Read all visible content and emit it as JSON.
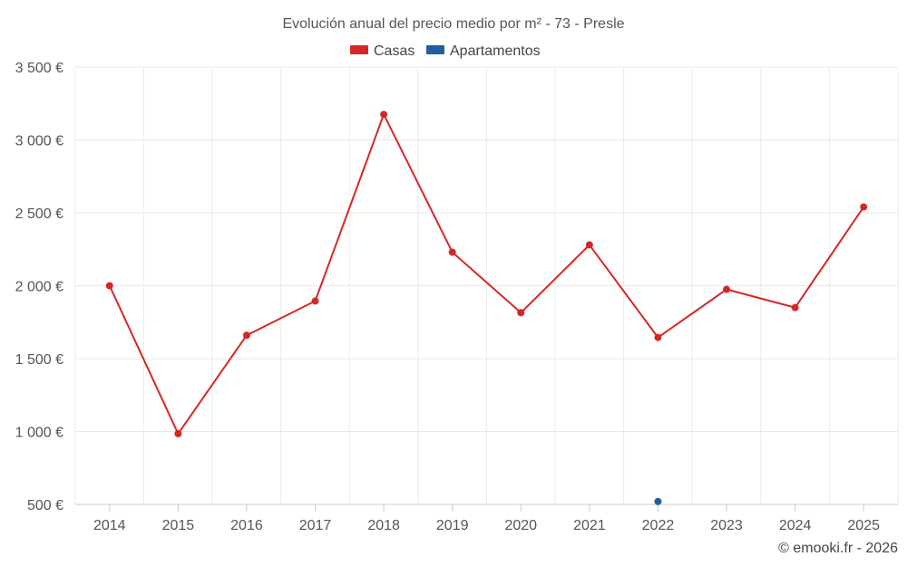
{
  "chart_data": {
    "type": "line",
    "title": "Evolución anual del precio medio por m² - 73 - Presle",
    "xlabel": "",
    "ylabel": "",
    "categories": [
      "2014",
      "2015",
      "2016",
      "2017",
      "2018",
      "2019",
      "2020",
      "2021",
      "2022",
      "2023",
      "2024",
      "2025"
    ],
    "y_ticks": [
      "500 €",
      "1 000 €",
      "1 500 €",
      "2 000 €",
      "2 500 €",
      "3 000 €",
      "3 500 €"
    ],
    "ylim": [
      500,
      3500
    ],
    "series": [
      {
        "name": "Casas",
        "color": "#d62728",
        "values": [
          2000,
          985,
          1660,
          1895,
          3175,
          2230,
          1815,
          2280,
          1645,
          1975,
          1850,
          2540
        ]
      },
      {
        "name": "Apartamentos",
        "color": "#1f5f9e",
        "values": [
          null,
          null,
          null,
          null,
          null,
          null,
          null,
          null,
          520,
          null,
          null,
          null
        ]
      }
    ]
  },
  "footer": {
    "copyright": "© emooki.fr - 2026"
  }
}
